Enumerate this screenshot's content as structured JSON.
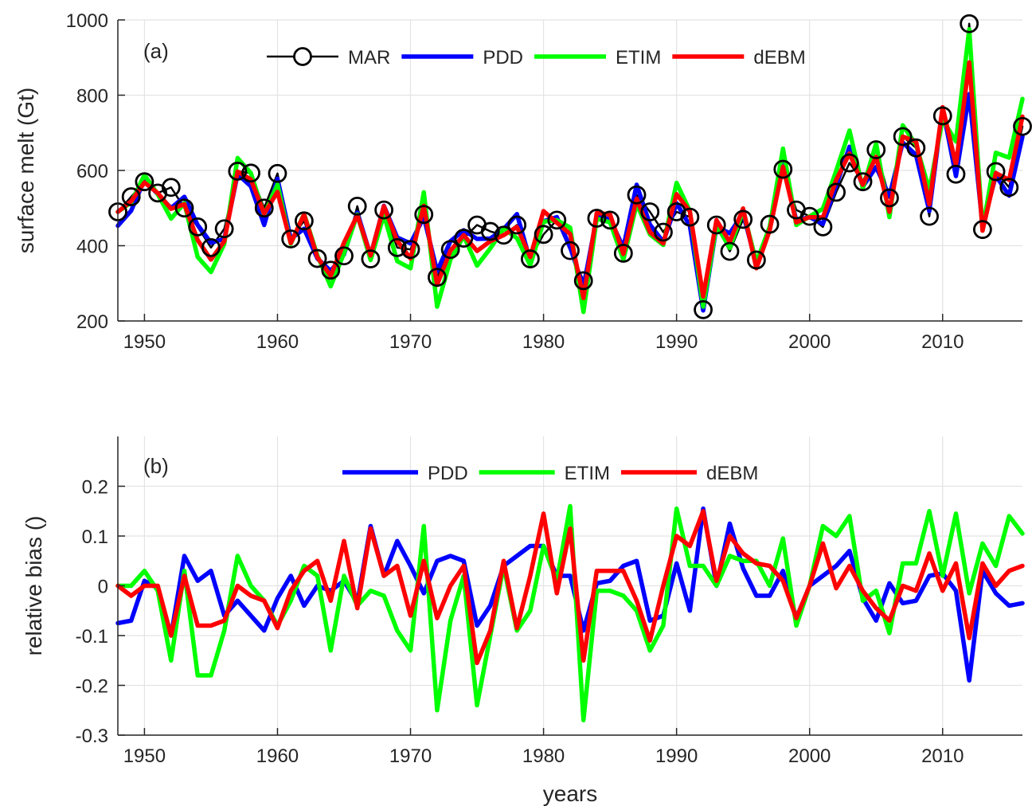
{
  "chart_data": [
    {
      "type": "line",
      "panel_label": "(a)",
      "xlabel": "",
      "ylabel": "surface melt (Gt)",
      "xlim": [
        1948,
        2016
      ],
      "ylim": [
        200,
        1000
      ],
      "xticks": [
        1950,
        1960,
        1970,
        1980,
        1990,
        2000,
        2010
      ],
      "yticks": [
        200,
        400,
        600,
        800,
        1000
      ],
      "grid": true,
      "legend": {
        "placement": "top-center",
        "orientation": "horizontal"
      },
      "x": [
        1948,
        1949,
        1950,
        1951,
        1952,
        1953,
        1954,
        1955,
        1956,
        1957,
        1958,
        1959,
        1960,
        1961,
        1962,
        1963,
        1964,
        1965,
        1966,
        1967,
        1968,
        1969,
        1970,
        1971,
        1972,
        1973,
        1974,
        1975,
        1976,
        1977,
        1978,
        1979,
        1980,
        1981,
        1982,
        1983,
        1984,
        1985,
        1986,
        1987,
        1988,
        1989,
        1990,
        1991,
        1992,
        1993,
        1994,
        1995,
        1996,
        1997,
        1998,
        1999,
        2000,
        2001,
        2002,
        2003,
        2004,
        2005,
        2006,
        2007,
        2008,
        2009,
        2010,
        2011,
        2012,
        2013,
        2014,
        2015,
        2016
      ],
      "series": [
        {
          "name": "MAR",
          "color": "#000000",
          "marker": "circle",
          "values": [
            490,
            530,
            570,
            540,
            555,
            500,
            450,
            395,
            445,
            598,
            593,
            500,
            592,
            418,
            466,
            366,
            335,
            373,
            505,
            365,
            495,
            395,
            390,
            483,
            316,
            390,
            420,
            455,
            438,
            428,
            455,
            365,
            430,
            468,
            387,
            307,
            473,
            468,
            380,
            535,
            490,
            436,
            490,
            476,
            230,
            455,
            385,
            470,
            362,
            457,
            603,
            495,
            478,
            450,
            542,
            620,
            570,
            655,
            527,
            690,
            660,
            478,
            745,
            590,
            990,
            443,
            597,
            555,
            717
          ]
        },
        {
          "name": "PDD",
          "color": "#0000ff",
          "values": [
            453,
            493,
            575,
            537,
            500,
            530,
            455,
            408,
            418,
            590,
            558,
            455,
            578,
            418,
            445,
            366,
            333,
            377,
            488,
            374,
            506,
            422,
            406,
            476,
            332,
            412,
            441,
            418,
            419,
            444,
            484,
            360,
            465,
            476,
            396,
            290,
            476,
            471,
            395,
            562,
            456,
            410,
            513,
            453,
            228,
            451,
            433,
            486,
            350,
            449,
            620,
            467,
            476,
            458,
            560,
            663,
            557,
            609,
            532,
            674,
            641,
            492,
            765,
            585,
            803,
            453,
            586,
            533,
            690
          ]
        },
        {
          "name": "ETIM",
          "color": "#00ff00",
          "values": [
            490,
            515,
            588,
            537,
            472,
            513,
            370,
            330,
            405,
            633,
            593,
            482,
            563,
            405,
            485,
            374,
            292,
            380,
            483,
            362,
            482,
            359,
            340,
            542,
            238,
            363,
            426,
            347,
            393,
            446,
            420,
            348,
            464,
            468,
            448,
            224,
            472,
            462,
            363,
            511,
            430,
            402,
            567,
            492,
            238,
            455,
            394,
            493,
            356,
            450,
            658,
            455,
            478,
            498,
            599,
            706,
            552,
            672,
            476,
            720,
            669,
            548,
            736,
            677,
            975,
            443,
            647,
            634,
            790
          ]
        },
        {
          "name": "dEBM",
          "color": "#ff0000",
          "values": [
            490,
            518,
            568,
            540,
            498,
            510,
            415,
            363,
            412,
            597,
            576,
            485,
            543,
            407,
            483,
            369,
            320,
            408,
            481,
            374,
            505,
            413,
            366,
            506,
            296,
            387,
            428,
            386,
            412,
            428,
            450,
            370,
            492,
            461,
            431,
            261,
            487,
            483,
            378,
            525,
            436,
            406,
            537,
            491,
            265,
            468,
            410,
            499,
            340,
            441,
            610,
            462,
            476,
            475,
            575,
            645,
            562,
            636,
            490,
            690,
            677,
            510,
            768,
            615,
            887,
            440,
            593,
            575,
            743
          ]
        }
      ]
    },
    {
      "type": "line",
      "panel_label": "(b)",
      "xlabel": "years",
      "ylabel": "relative bias ()",
      "xlim": [
        1948,
        2016
      ],
      "ylim": [
        -0.3,
        0.3
      ],
      "xticks": [
        1950,
        1960,
        1970,
        1980,
        1990,
        2000,
        2010
      ],
      "yticks": [
        -0.3,
        -0.2,
        -0.1,
        0,
        0.1,
        0.2
      ],
      "ytick_labels": [
        "-0.3",
        "-0.2",
        "-0.1",
        "0",
        "0.1",
        "0.2"
      ],
      "grid": true,
      "legend": {
        "placement": "top-center",
        "orientation": "horizontal"
      },
      "x": [
        1948,
        1949,
        1950,
        1951,
        1952,
        1953,
        1954,
        1955,
        1956,
        1957,
        1958,
        1959,
        1960,
        1961,
        1962,
        1963,
        1964,
        1965,
        1966,
        1967,
        1968,
        1969,
        1970,
        1971,
        1972,
        1973,
        1974,
        1975,
        1976,
        1977,
        1978,
        1979,
        1980,
        1981,
        1982,
        1983,
        1984,
        1985,
        1986,
        1987,
        1988,
        1989,
        1990,
        1991,
        1992,
        1993,
        1994,
        1995,
        1996,
        1997,
        1998,
        1999,
        2000,
        2001,
        2002,
        2003,
        2004,
        2005,
        2006,
        2007,
        2008,
        2009,
        2010,
        2011,
        2012,
        2013,
        2014,
        2015,
        2016
      ],
      "series": [
        {
          "name": "PDD",
          "color": "#0000ff",
          "values": [
            -0.075,
            -0.07,
            0.01,
            -0.005,
            -0.1,
            0.06,
            0.01,
            0.03,
            -0.06,
            -0.03,
            -0.06,
            -0.09,
            -0.025,
            0.02,
            -0.04,
            0.0,
            -0.01,
            0.01,
            -0.035,
            0.12,
            0.02,
            0.09,
            0.04,
            -0.015,
            0.05,
            0.06,
            0.05,
            -0.08,
            -0.04,
            0.04,
            0.06,
            0.08,
            0.08,
            0.02,
            0.02,
            -0.09,
            0.005,
            0.01,
            0.04,
            0.05,
            -0.07,
            -0.06,
            0.045,
            -0.05,
            0.155,
            0.0,
            0.125,
            0.035,
            -0.02,
            -0.02,
            0.03,
            -0.065,
            0.0,
            0.02,
            0.04,
            0.07,
            -0.025,
            -0.07,
            0.005,
            -0.035,
            -0.03,
            0.02,
            0.025,
            -0.01,
            -0.19,
            0.03,
            -0.015,
            -0.04,
            -0.035
          ]
        },
        {
          "name": "ETIM",
          "color": "#00ff00",
          "values": [
            0.0,
            0.0,
            0.03,
            -0.01,
            -0.15,
            0.03,
            -0.18,
            -0.18,
            -0.09,
            0.06,
            0.0,
            -0.03,
            -0.08,
            -0.03,
            0.04,
            0.02,
            -0.13,
            0.02,
            -0.04,
            -0.01,
            -0.02,
            -0.09,
            -0.13,
            0.12,
            -0.25,
            -0.07,
            0.02,
            -0.24,
            -0.1,
            0.04,
            -0.09,
            -0.05,
            0.08,
            0.01,
            0.16,
            -0.27,
            -0.01,
            -0.01,
            -0.02,
            -0.05,
            -0.13,
            -0.08,
            0.155,
            0.04,
            0.04,
            0.0,
            0.06,
            0.05,
            0.05,
            0.0,
            0.095,
            -0.08,
            0.0,
            0.12,
            0.1,
            0.14,
            -0.03,
            -0.01,
            -0.095,
            0.045,
            0.045,
            0.15,
            0.02,
            0.145,
            -0.015,
            0.085,
            0.04,
            0.14,
            0.105
          ]
        },
        {
          "name": "dEBM",
          "color": "#ff0000",
          "values": [
            0.0,
            -0.02,
            0.0,
            0.0,
            -0.1,
            0.02,
            -0.08,
            -0.08,
            -0.07,
            0.0,
            -0.02,
            -0.03,
            -0.085,
            -0.01,
            0.03,
            0.05,
            -0.03,
            0.09,
            -0.045,
            0.115,
            0.02,
            0.04,
            -0.06,
            0.05,
            -0.065,
            0.0,
            0.04,
            -0.155,
            -0.09,
            0.05,
            -0.085,
            0.02,
            0.145,
            -0.015,
            0.115,
            -0.15,
            0.03,
            0.03,
            0.03,
            -0.03,
            -0.11,
            0.0,
            0.1,
            0.08,
            0.15,
            0.01,
            0.1,
            0.065,
            0.045,
            0.04,
            0.01,
            -0.065,
            0.0,
            0.085,
            -0.005,
            0.04,
            -0.01,
            -0.045,
            -0.07,
            0.0,
            -0.01,
            0.065,
            -0.01,
            0.045,
            -0.105,
            0.045,
            0.0,
            0.03,
            0.04
          ]
        }
      ]
    }
  ]
}
